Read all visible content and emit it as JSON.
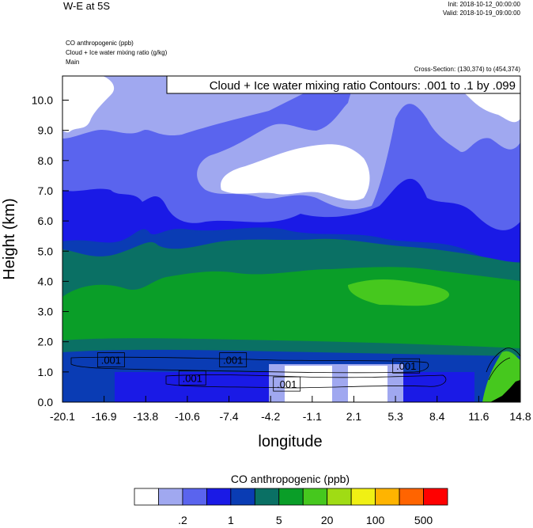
{
  "header": {
    "title": "W-E at 5S",
    "init": "Init: 2018-10-12_00:00:00",
    "valid": "Valid: 2018-10-19_09:00:00",
    "fields": [
      "CO anthropogenic   (ppb)",
      "Cloud + Ice water mixing ratio   (g/kg)",
      "Main"
    ],
    "cross_section": "Cross-Section: (130,374) to (454,374)"
  },
  "chart_data": {
    "type": "heatmap",
    "contour_label": "Cloud + Ice water mixing ratio Contours: .001 to .1 by .099",
    "xlabel": "longitude",
    "ylabel": "Height (km)",
    "xticks": [
      "-20.1",
      "-16.9",
      "-13.8",
      "-10.6",
      "-7.4",
      "-4.2",
      "-1.1",
      "2.1",
      "5.3",
      "8.4",
      "11.6",
      "14.8"
    ],
    "yticks": [
      "0.0",
      "1.0",
      "2.0",
      "3.0",
      "4.0",
      "5.0",
      "6.0",
      "7.0",
      "8.0",
      "9.0",
      "10.0"
    ],
    "xlim": [
      -20.1,
      14.8
    ],
    "ylim": [
      0,
      10.8
    ],
    "contour_labels": [
      {
        "text": ".001",
        "x": -16.4,
        "y": 1.4
      },
      {
        "text": ".001",
        "x": -7.1,
        "y": 1.4
      },
      {
        "text": ".001",
        "x": -10.2,
        "y": 0.8
      },
      {
        "text": ".001",
        "x": -3.0,
        "y": 0.6
      },
      {
        "text": ".001",
        "x": 6.1,
        "y": 1.2
      }
    ],
    "colorbar": {
      "title": "CO anthropogenic  (ppb)",
      "colors": [
        "#ffffff",
        "#a0a8f0",
        "#5a64ee",
        "#1a1ae6",
        "#0a3cb4",
        "#0a7064",
        "#0a9e28",
        "#46c81e",
        "#a0dc14",
        "#f0f014",
        "#ffb400",
        "#ff6400",
        "#ff0000"
      ],
      "labels": [
        ".2",
        "1",
        "5",
        "20",
        "100",
        "500"
      ]
    },
    "bands": [
      {
        "level": 1,
        "color": "#ffffff"
      },
      {
        "level": 2,
        "color": "#a0a8f0"
      },
      {
        "level": 3,
        "color": "#5a64ee"
      },
      {
        "level": 4,
        "color": "#1a1ae6"
      },
      {
        "level": 5,
        "color": "#0a3cb4"
      },
      {
        "level": 6,
        "color": "#0a7064"
      },
      {
        "level": 7,
        "color": "#0a9e28"
      },
      {
        "level": 8,
        "color": "#46c81e"
      }
    ]
  }
}
